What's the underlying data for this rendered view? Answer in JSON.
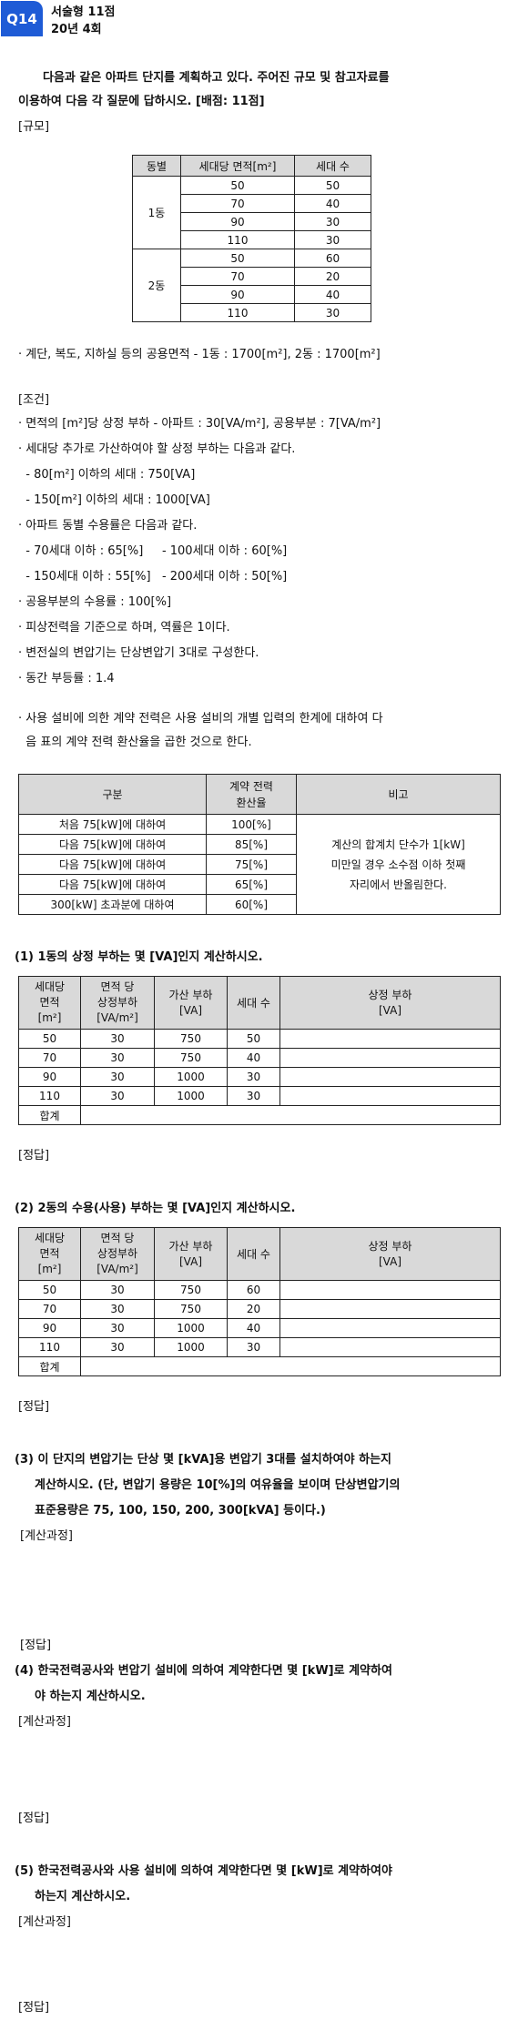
{
  "header": {
    "badge": "Q14",
    "type": "서술형 11점",
    "exam": "20년 4회"
  },
  "intro": [
    "다음과 같은 아파트 단지를 계획하고 있다. 주어진 규모 및 참고자료를",
    "이용하여 다음 각 질문에 답하시오. [배점: 11점]"
  ],
  "scale_label": "[규모]",
  "scale_table": {
    "headers": [
      "동별",
      "세대당 면적[m²]",
      "세대 수"
    ],
    "groups": [
      {
        "dong": "1동",
        "rows": [
          [
            "50",
            "50"
          ],
          [
            "70",
            "40"
          ],
          [
            "90",
            "30"
          ],
          [
            "110",
            "30"
          ]
        ]
      },
      {
        "dong": "2동",
        "rows": [
          [
            "50",
            "60"
          ],
          [
            "70",
            "20"
          ],
          [
            "90",
            "40"
          ],
          [
            "110",
            "30"
          ]
        ]
      }
    ]
  },
  "common_area": "· 계단, 복도, 지하실 등의 공용면적 - 1동 : 1700[m²], 2동 : 1700[m²]",
  "conditions_label": "[조건]",
  "conditions": [
    "· 면적의 [m²]당 상정 부하 - 아파트 : 30[VA/m²], 공용부분 : 7[VA/m²]",
    "· 세대당 추가로 가산하여야 할 상정 부하는 다음과 같다.",
    "  - 80[m²] 이하의 세대 : 750[VA]",
    "  - 150[m²] 이하의 세대 : 1000[VA]",
    "· 아파트 동별 수용률은 다음과 같다.",
    "  - 70세대 이하 : 65[%]     - 100세대 이하 : 60[%]",
    "  - 150세대 이하 : 55[%]   - 200세대 이하 : 50[%]",
    "· 공용부분의 수용률 : 100[%]",
    "· 피상전력을 기준으로 하며, 역률은 1이다.",
    "· 변전실의 변압기는 단상변압기 3대로 구성한다.",
    "· 동간 부등률 : 1.4"
  ],
  "contract_note": [
    "· 사용 설비에 의한 계약 전력은 사용 설비의 개별 입력의 한계에 대하여 다",
    "  음 표의 계약 전력 환산율을 곱한 것으로 한다."
  ],
  "contract_table": {
    "headers": [
      "구분",
      "계약 전력\n환산율",
      "비고"
    ],
    "rows": [
      [
        "처음 75[kW]에 대하여",
        "100[%]"
      ],
      [
        "다음 75[kW]에 대하여",
        "85[%]"
      ],
      [
        "다음 75[kW]에 대하여",
        "75[%]"
      ],
      [
        "다음 75[kW]에 대하여",
        "65[%]"
      ],
      [
        "300[kW] 초과분에 대하여",
        "60[%]"
      ]
    ],
    "remark": [
      "계산의 합계치 단수가 1[kW]",
      "미만일 경우 소수점 이하 첫째",
      "자리에서 반올림한다."
    ]
  },
  "q1": {
    "title": "(1) 1동의 상정 부하는 몇 [VA]인지 계산하시오.",
    "headers": [
      "세대당\n면적\n[m²]",
      "면적 당\n상정부하\n[VA/m²]",
      "가산 부하\n[VA]",
      "세대 수",
      "상정 부하\n[VA]"
    ],
    "rows": [
      [
        "50",
        "30",
        "750",
        "50"
      ],
      [
        "70",
        "30",
        "750",
        "40"
      ],
      [
        "90",
        "30",
        "1000",
        "30"
      ],
      [
        "110",
        "30",
        "1000",
        "30"
      ]
    ],
    "total": "합계",
    "answer": "[정답]"
  },
  "q2": {
    "title": "(2) 2동의 수용(사용) 부하는 몇 [VA]인지 계산하시오.",
    "headers": [
      "세대당\n면적\n[m²]",
      "면적 당\n상정부하\n[VA/m²]",
      "가산 부하\n[VA]",
      "세대 수",
      "상정 부하\n[VA]"
    ],
    "rows": [
      [
        "50",
        "30",
        "750",
        "60"
      ],
      [
        "70",
        "30",
        "750",
        "20"
      ],
      [
        "90",
        "30",
        "1000",
        "40"
      ],
      [
        "110",
        "30",
        "1000",
        "30"
      ]
    ],
    "total": "합계",
    "answer": "[정답]"
  },
  "q3": {
    "title": [
      "(3) 이 단지의 변압기는 단상 몇 [kVA]용 변압기 3대를 설치하여야 하는지",
      "계산하시오. (단, 변압기 용량은 10[%]의 여유율을 보이며 단상변압기의",
      "표준용량은 75, 100, 150, 200, 300[kVA] 등이다.)"
    ],
    "calc": "[계산과정]",
    "answer": "[정답]"
  },
  "q4": {
    "title": [
      "(4) 한국전력공사와 변압기 설비에 의하여 계약한다면 몇 [kW]로 계약하여",
      "야 하는지 계산하시오."
    ],
    "calc": "[계산과정]",
    "answer": "[정답]"
  },
  "q5": {
    "title": [
      "(5) 한국전력공사와 사용 설비에 의하여 계약한다면 몇 [kW]로 계약하여야",
      "하는지 계산하시오."
    ],
    "calc": "[계산과정]",
    "answer": "[정답]"
  }
}
